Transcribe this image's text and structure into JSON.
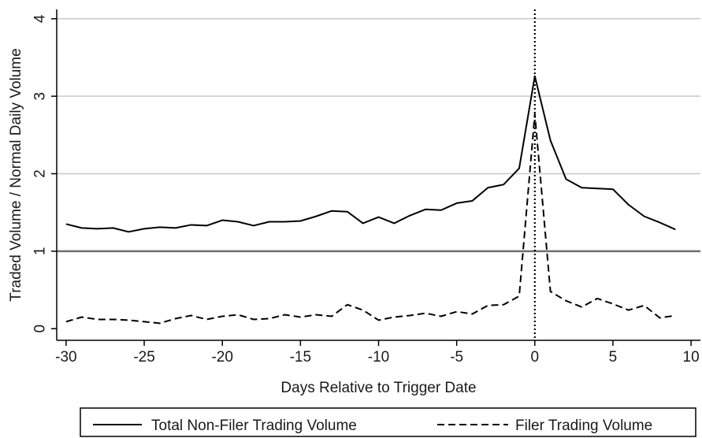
{
  "chart_data": {
    "type": "line",
    "xlabel": "Days Relative to Trigger Date",
    "ylabel": "Traded Volume / Normal Daily Volume",
    "xlim": [
      -30.6,
      10.6
    ],
    "ylim": [
      -0.15,
      4.12
    ],
    "xticks": [
      -30,
      -25,
      -20,
      -15,
      -10,
      -5,
      0,
      5,
      10
    ],
    "yticks": [
      0,
      1,
      2,
      3,
      4
    ],
    "xtick_labels": [
      "-30",
      "-25",
      "-20",
      "-15",
      "-10",
      "-5",
      "0",
      "5",
      "10"
    ],
    "ytick_labels": [
      "0",
      "1",
      "2",
      "3",
      "4"
    ],
    "grid": "horizontal",
    "reference_lines": {
      "horizontal": 1,
      "vertical": 0
    },
    "legend_position": "bottom",
    "x": [
      -30,
      -29,
      -28,
      -27,
      -26,
      -25,
      -24,
      -23,
      -22,
      -21,
      -20,
      -19,
      -18,
      -17,
      -16,
      -15,
      -14,
      -13,
      -12,
      -11,
      -10,
      -9,
      -8,
      -7,
      -6,
      -5,
      -4,
      -3,
      -2,
      -1,
      0,
      1,
      2,
      3,
      4,
      5,
      6,
      7,
      8,
      9
    ],
    "series": [
      {
        "name": "Total Non-Filer Trading Volume",
        "style": "solid",
        "values": [
          1.35,
          1.3,
          1.29,
          1.3,
          1.25,
          1.29,
          1.31,
          1.3,
          1.34,
          1.33,
          1.4,
          1.38,
          1.33,
          1.38,
          1.38,
          1.39,
          1.45,
          1.52,
          1.51,
          1.36,
          1.44,
          1.36,
          1.46,
          1.54,
          1.53,
          1.62,
          1.65,
          1.82,
          1.86,
          2.07,
          3.26,
          2.43,
          1.93,
          1.82,
          1.81,
          1.8,
          1.6,
          1.45,
          1.37,
          1.28
        ]
      },
      {
        "name": "Filer Trading Volume",
        "style": "dashed",
        "values": [
          0.09,
          0.15,
          0.12,
          0.12,
          0.11,
          0.09,
          0.07,
          0.13,
          0.17,
          0.12,
          0.16,
          0.18,
          0.12,
          0.13,
          0.18,
          0.15,
          0.18,
          0.16,
          0.31,
          0.24,
          0.11,
          0.15,
          0.17,
          0.2,
          0.16,
          0.22,
          0.19,
          0.3,
          0.31,
          0.42,
          2.77,
          0.48,
          0.36,
          0.28,
          0.39,
          0.32,
          0.24,
          0.3,
          0.14,
          0.17
        ]
      }
    ]
  },
  "colors": {
    "line": "#000000",
    "grid": "#c8c8c8",
    "refline": "#6e6e6e",
    "axis": "#000000"
  }
}
